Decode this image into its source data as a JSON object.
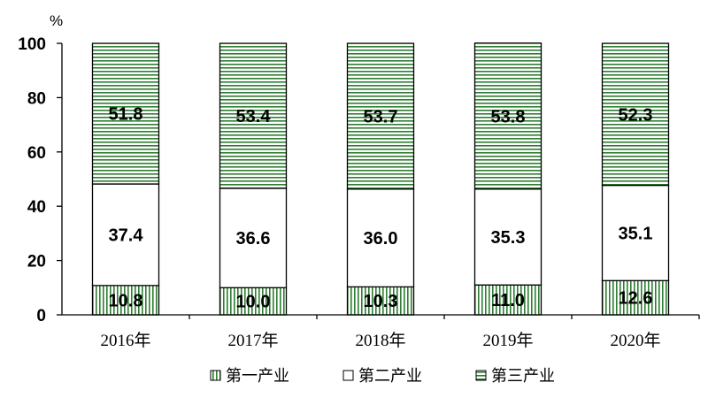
{
  "chart_data": {
    "type": "bar",
    "stacked": true,
    "unit": "%",
    "categories": [
      "2016年",
      "2017年",
      "2018年",
      "2019年",
      "2020年"
    ],
    "series": [
      {
        "name": "第一产业",
        "values": [
          10.8,
          10.0,
          10.3,
          11.0,
          12.6
        ],
        "pattern": "vertical-stripes",
        "color": "#2e7d32"
      },
      {
        "name": "第二产业",
        "values": [
          37.4,
          36.6,
          36.0,
          35.3,
          35.1
        ],
        "pattern": "none",
        "color": "#ffffff"
      },
      {
        "name": "第三产业",
        "values": [
          51.8,
          53.4,
          53.7,
          53.8,
          52.3
        ],
        "pattern": "horizontal-stripes",
        "color": "#2e7d32"
      }
    ],
    "ylim": [
      0,
      100
    ],
    "yticks": [
      0,
      20,
      40,
      60,
      80,
      100
    ],
    "grid": false,
    "legend_position": "bottom",
    "data_labels": true
  }
}
